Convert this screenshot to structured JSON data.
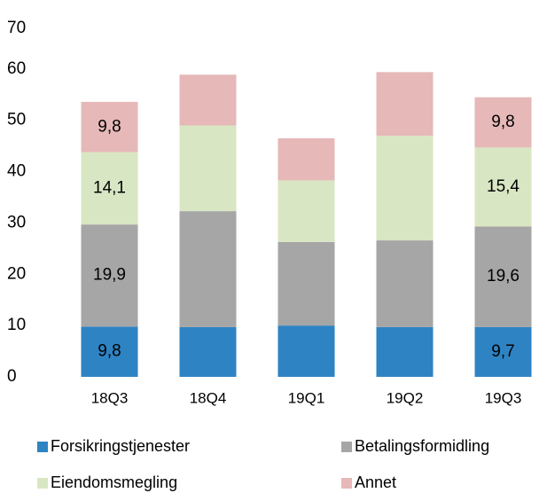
{
  "chart_data": {
    "type": "stacked_bar",
    "categories": [
      "18Q3",
      "18Q4",
      "19Q1",
      "19Q2",
      "19Q3"
    ],
    "series": [
      {
        "name": "Forsikringstjenester",
        "color": "#2e83c3",
        "values": [
          9.8,
          9.7,
          10.0,
          9.7,
          9.7
        ],
        "value_labels": [
          "9,8",
          null,
          null,
          null,
          "9,7"
        ]
      },
      {
        "name": "Betalingsformidling",
        "color": "#a6a6a6",
        "values": [
          19.9,
          22.6,
          16.3,
          16.9,
          19.6
        ],
        "value_labels": [
          "19,9",
          null,
          null,
          null,
          "19,6"
        ]
      },
      {
        "name": "Eiendomsmegling",
        "color": "#d8e6c3",
        "values": [
          14.1,
          16.7,
          12.0,
          20.4,
          15.4
        ],
        "value_labels": [
          "14,1",
          null,
          null,
          null,
          "15,4"
        ]
      },
      {
        "name": "Annet",
        "color": "#e6b8b8",
        "values": [
          9.8,
          9.9,
          8.2,
          12.4,
          9.8
        ],
        "value_labels": [
          "9,8",
          null,
          null,
          null,
          "9,8"
        ]
      }
    ],
    "ylim": [
      0,
      70
    ],
    "yticks": [
      0,
      10,
      20,
      30,
      40,
      50,
      60,
      70
    ],
    "grid": false
  }
}
